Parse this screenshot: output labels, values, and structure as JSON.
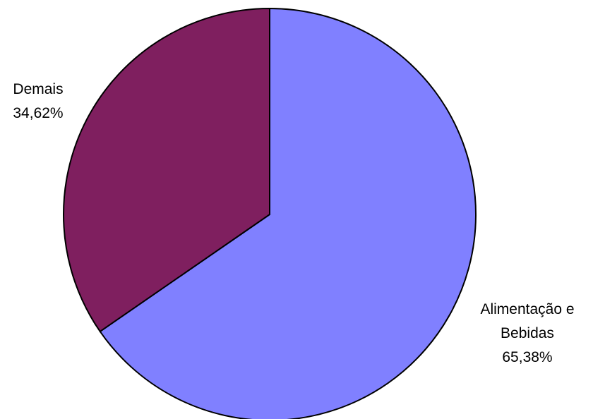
{
  "chart_data": {
    "type": "pie",
    "title": "",
    "slices": [
      {
        "name": "Alimentação e Bebidas",
        "label_lines": [
          "Alimentação e",
          "Bebidas"
        ],
        "value": 65.38,
        "value_label": "65,38%",
        "color": "#8080ff"
      },
      {
        "name": "Demais",
        "label_lines": [
          "Demais"
        ],
        "value": 34.62,
        "value_label": "34,62%",
        "color": "#7f1f5f"
      }
    ],
    "start_angle": "12 o'clock",
    "direction": "clockwise",
    "legend": "none",
    "stroke_color": "#000000"
  }
}
